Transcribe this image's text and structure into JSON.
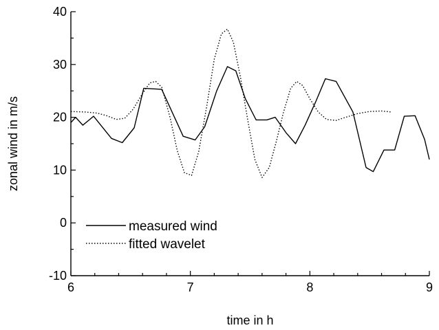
{
  "chart_data": {
    "type": "line",
    "xlabel": "time in h",
    "ylabel": "zonal wind in m/s",
    "xlim": [
      6,
      9
    ],
    "ylim": [
      -10,
      40
    ],
    "x_ticks": [
      6,
      7,
      8,
      9
    ],
    "y_ticks": [
      -10,
      0,
      10,
      20,
      30,
      40
    ],
    "x_tick_labels": [
      "6",
      "7",
      "8",
      "9"
    ],
    "y_tick_labels": [
      "-10",
      "0",
      "10",
      "20",
      "30",
      "40"
    ],
    "grid": false,
    "legend_position": "bottom-left",
    "series": [
      {
        "name": "measured wind",
        "style": "solid",
        "color": "#000000",
        "x": [
          6.0,
          6.04,
          6.1,
          6.19,
          6.34,
          6.43,
          6.53,
          6.61,
          6.76,
          6.94,
          7.04,
          7.12,
          7.22,
          7.31,
          7.38,
          7.46,
          7.55,
          7.64,
          7.71,
          7.8,
          7.88,
          7.96,
          8.05,
          8.13,
          8.22,
          8.36,
          8.47,
          8.53,
          8.62,
          8.71,
          8.79,
          8.88,
          8.96,
          9.0
        ],
        "y": [
          19.0,
          20.0,
          18.5,
          20.2,
          16.0,
          15.2,
          18.0,
          25.5,
          25.3,
          16.4,
          15.7,
          18.2,
          25.0,
          29.6,
          28.8,
          23.5,
          19.5,
          19.5,
          20.0,
          17.1,
          15.0,
          18.5,
          23.0,
          27.3,
          26.8,
          21.0,
          10.5,
          9.7,
          13.8,
          13.8,
          20.2,
          20.3,
          15.8,
          12.0
        ]
      },
      {
        "name": "fitted wavelet",
        "style": "dotted",
        "color": "#000000",
        "x": [
          6.0,
          6.12,
          6.22,
          6.3,
          6.38,
          6.45,
          6.52,
          6.6,
          6.66,
          6.71,
          6.76,
          6.83,
          6.89,
          6.95,
          7.01,
          7.07,
          7.14,
          7.2,
          7.26,
          7.31,
          7.36,
          7.42,
          7.48,
          7.54,
          7.6,
          7.66,
          7.72,
          7.78,
          7.84,
          7.89,
          7.94,
          8.0,
          8.07,
          8.14,
          8.22,
          8.3,
          8.4,
          8.5,
          8.6,
          8.68
        ],
        "y": [
          21.1,
          21.0,
          20.8,
          20.3,
          19.6,
          19.8,
          21.5,
          24.5,
          26.5,
          26.8,
          25.7,
          20.0,
          13.7,
          9.5,
          9.0,
          13.5,
          22.5,
          31.0,
          35.8,
          36.7,
          34.2,
          27.5,
          19.5,
          12.0,
          8.6,
          10.5,
          15.5,
          21.0,
          25.5,
          26.8,
          26.0,
          23.5,
          21.0,
          19.6,
          19.4,
          20.0,
          20.7,
          21.1,
          21.2,
          21.0
        ]
      }
    ]
  }
}
